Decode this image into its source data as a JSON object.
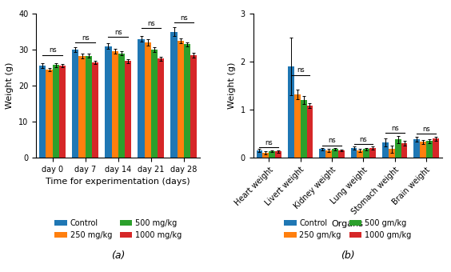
{
  "chart_data": [
    {
      "type": "bar",
      "title": "(a)",
      "x_label": "Time for experimentation (days)",
      "y_label": "Weight (g)",
      "ylim": [
        0,
        40
      ],
      "yticks": [
        0,
        10,
        20,
        30,
        40
      ],
      "categories": [
        "day 0",
        "day 7",
        "day 14",
        "day 21",
        "day 28"
      ],
      "series": [
        {
          "name": "Control",
          "values": [
            25.5,
            30.0,
            31.0,
            33.0,
            35.0
          ],
          "errors": [
            0.7,
            0.6,
            0.8,
            0.8,
            1.2
          ]
        },
        {
          "name": "250 mg/kg",
          "values": [
            24.5,
            28.2,
            29.5,
            32.0,
            32.5
          ],
          "errors": [
            0.5,
            0.6,
            0.7,
            0.8,
            0.7
          ]
        },
        {
          "name": "500 mg/kg",
          "values": [
            25.7,
            28.3,
            29.0,
            30.0,
            31.5
          ],
          "errors": [
            0.5,
            0.5,
            0.6,
            0.7,
            0.6
          ]
        },
        {
          "name": "1000 mg/kg",
          "values": [
            25.6,
            26.5,
            26.8,
            27.5,
            28.5
          ],
          "errors": [
            0.5,
            0.5,
            0.5,
            0.6,
            0.6
          ]
        }
      ],
      "annotations": [
        {
          "text": "ns",
          "category": "day 0",
          "y": 28.5
        },
        {
          "text": "ns",
          "category": "day 7",
          "y": 32.0
        },
        {
          "text": "ns",
          "category": "day 14",
          "y": 33.5
        },
        {
          "text": "ns",
          "category": "day 21",
          "y": 36.0
        },
        {
          "text": "ns",
          "category": "day 28",
          "y": 37.5
        }
      ],
      "legend": "upper center"
    },
    {
      "type": "bar",
      "title": "(b)",
      "x_label": "Organs",
      "y_label": "Weight (g)",
      "ylim": [
        0,
        3
      ],
      "yticks": [
        0,
        1,
        2,
        3
      ],
      "categories": [
        "Heart weight",
        "Livert weight",
        "Kidney weight",
        "Lung weight",
        "Stomach weight",
        "Brain weight"
      ],
      "series": [
        {
          "name": "Control",
          "values": [
            0.15,
            1.9,
            0.18,
            0.2,
            0.32,
            0.38
          ],
          "errors": [
            0.03,
            0.6,
            0.03,
            0.03,
            0.08,
            0.05
          ]
        },
        {
          "name": "250 gm/kg",
          "values": [
            0.1,
            1.32,
            0.15,
            0.15,
            0.18,
            0.33
          ],
          "errors": [
            0.03,
            0.1,
            0.03,
            0.03,
            0.08,
            0.04
          ]
        },
        {
          "name": "500 gm/kg",
          "values": [
            0.14,
            1.2,
            0.18,
            0.18,
            0.38,
            0.35
          ],
          "errors": [
            0.02,
            0.08,
            0.03,
            0.03,
            0.07,
            0.04
          ]
        },
        {
          "name": "1000 gm/kg",
          "values": [
            0.13,
            1.08,
            0.15,
            0.2,
            0.3,
            0.4
          ],
          "errors": [
            0.02,
            0.05,
            0.02,
            0.03,
            0.05,
            0.04
          ]
        }
      ],
      "annotations": [
        {
          "text": "ns",
          "category": "Heart weight",
          "y": 0.22
        },
        {
          "text": "ns",
          "category": "Livert weight",
          "y": 1.72
        },
        {
          "text": "ns",
          "category": "Kidney weight",
          "y": 0.26
        },
        {
          "text": "ns",
          "category": "Lung weight",
          "y": 0.28
        },
        {
          "text": "ns",
          "category": "Stomach weight",
          "y": 0.52
        },
        {
          "text": "ns",
          "category": "Brain weight",
          "y": 0.5
        }
      ],
      "legend": "upper center"
    }
  ]
}
